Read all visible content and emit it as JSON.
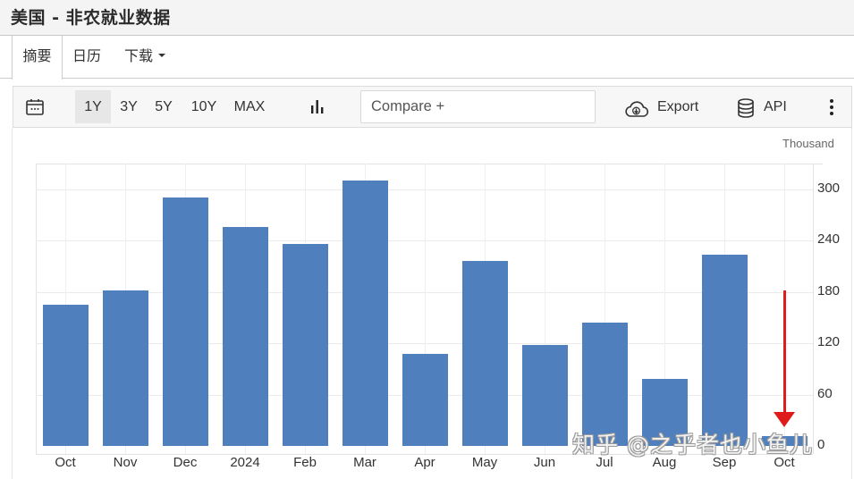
{
  "header": {
    "title": "美国 - 非农就业数据"
  },
  "tabs": [
    {
      "label": "摘要",
      "active": true
    },
    {
      "label": "日历",
      "active": false
    },
    {
      "label": "下载",
      "active": false,
      "has_dropdown": true
    }
  ],
  "toolbar": {
    "calendar_icon": "calendar-icon",
    "ranges": [
      {
        "label": "1Y",
        "active": true
      },
      {
        "label": "3Y",
        "active": false
      },
      {
        "label": "5Y",
        "active": false
      },
      {
        "label": "10Y",
        "active": false
      },
      {
        "label": "MAX",
        "active": false
      }
    ],
    "chart_type_icon": "bar-chart-icon",
    "compare_placeholder": "Compare +",
    "export_label": "Export",
    "export_icon": "cloud-download-icon",
    "api_label": "API",
    "api_icon": "database-icon",
    "more_icon": "kebab-menu-icon"
  },
  "chart": {
    "unit_label": "Thousand",
    "annotation": {
      "type": "arrow",
      "color": "#e01b1b",
      "points_to": "Oct"
    }
  },
  "watermark": "知乎 @之乎者也小鱼儿",
  "colors": {
    "bar": "#4f7fbd",
    "arrow": "#e01b1b",
    "header_bg": "#f4f4f4",
    "toolbar_bg": "#f7f7f7",
    "active_range_bg": "#e7e7e7"
  },
  "chart_data": {
    "type": "bar",
    "title": "美国 - 非农就业数据",
    "categories": [
      "Oct",
      "Nov",
      "Dec",
      "2024",
      "Feb",
      "Mar",
      "Apr",
      "May",
      "Jun",
      "Jul",
      "Aug",
      "Sep",
      "Oct"
    ],
    "values": [
      165,
      182,
      290,
      256,
      236,
      310,
      108,
      216,
      118,
      144,
      78,
      223,
      12
    ],
    "xlabel": "",
    "ylabel": "Thousand",
    "yticks": [
      0,
      60,
      120,
      180,
      240,
      300
    ],
    "ylim": [
      0,
      330
    ],
    "y_axis_position": "right",
    "grid": true,
    "legend": null
  }
}
